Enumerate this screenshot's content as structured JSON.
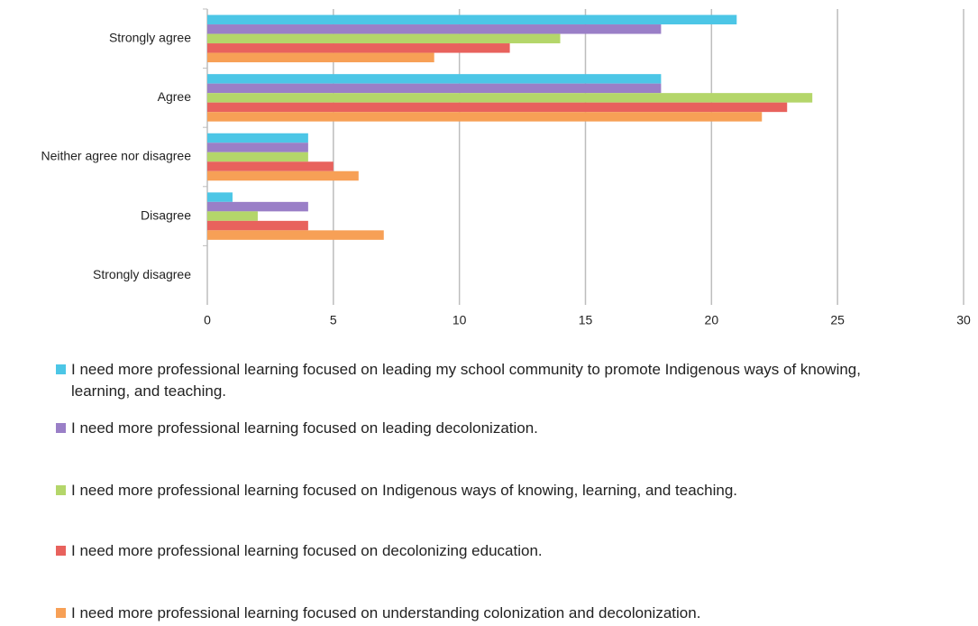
{
  "chart_data": {
    "type": "bar",
    "orientation": "horizontal",
    "categories": [
      "Strongly agree",
      "Agree",
      "Neither agree nor disagree",
      "Disagree",
      "Strongly disagree"
    ],
    "series": [
      {
        "name": "I need more professional learning focused on leading my school community to promote Indigenous ways of knowing, learning, and teaching.",
        "color": "#4cc6e6",
        "values": [
          21,
          18,
          4,
          1,
          0
        ]
      },
      {
        "name": "I need more professional learning focused on leading decolonization.",
        "color": "#9a7fc7",
        "values": [
          18,
          18,
          4,
          4,
          0
        ]
      },
      {
        "name": "I need more professional learning focused on Indigenous ways of knowing, learning, and teaching.",
        "color": "#b4d66a",
        "values": [
          14,
          24,
          4,
          2,
          0
        ]
      },
      {
        "name": "I need more professional learning focused on decolonizing education.",
        "color": "#e8625d",
        "values": [
          12,
          23,
          5,
          4,
          0
        ]
      },
      {
        "name": "I need more professional learning focused on understanding colonization and decolonization.",
        "color": "#f7a056",
        "values": [
          9,
          22,
          6,
          7,
          0
        ]
      }
    ],
    "xlim": [
      0,
      30
    ],
    "xticks": [
      0,
      5,
      10,
      15,
      20,
      25,
      30
    ],
    "grid": true,
    "legend": "bottom"
  }
}
